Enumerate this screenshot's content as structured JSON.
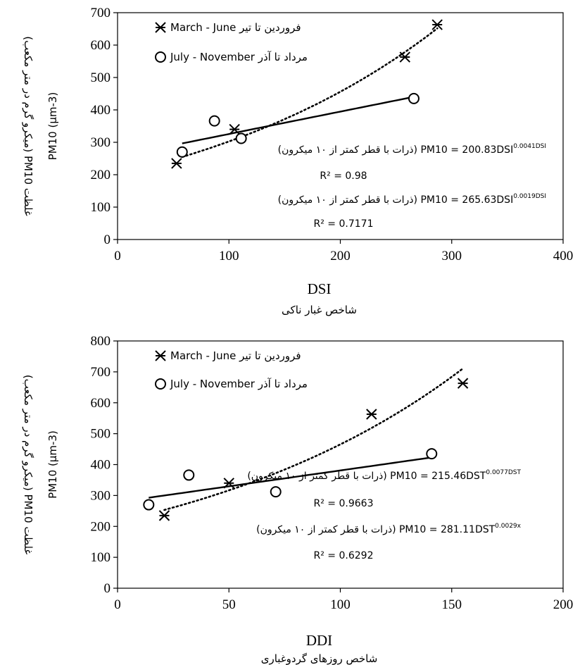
{
  "chart_data": [
    {
      "type": "scatter",
      "xlabel": "DSI",
      "xlabel_sub": "شاخص غبار ناکی",
      "ylabel_line1": "غلظت PM10 (میکرو گرم در متر مکعب)",
      "ylabel_line2": "PM10 (µm-3)",
      "xlim": [
        0,
        400
      ],
      "ylim": [
        0,
        700
      ],
      "xticks": [
        0,
        100,
        200,
        300,
        400
      ],
      "yticks": [
        0,
        100,
        200,
        300,
        400,
        500,
        600,
        700
      ],
      "grid": false,
      "legend_position": "top-left",
      "series": [
        {
          "name": "فروردین تا تیر March - June",
          "marker": "star",
          "trend": "exponential dotted",
          "x": [
            53,
            105,
            258,
            287
          ],
          "y": [
            235,
            340,
            563,
            663
          ],
          "trend_coeff": [
            200.83,
            0.0041
          ],
          "trend_x_range": [
            58,
            287
          ]
        },
        {
          "name": "مرداد تا آذر July - November",
          "marker": "circle",
          "trend": "exponential solid",
          "x": [
            58,
            87,
            111,
            266
          ],
          "y": [
            270,
            366,
            312,
            435
          ],
          "trend_coeff": [
            265.63,
            0.0019
          ],
          "trend_x_range": [
            58,
            266
          ]
        }
      ],
      "annotations": [
        {
          "text": "(ذرات با قطر کمتر از ۱۰ میکرون) PM10 = 200.83DSI",
          "sup": "0.0041DSI"
        },
        {
          "text": "R² = 0.98"
        },
        {
          "text": "(ذرات با قطر کمتر از ۱۰ میکرون) PM10 = 265.63DSI",
          "sup": "0.0019DSI"
        },
        {
          "text": "R² = 0.7171"
        }
      ]
    },
    {
      "type": "scatter",
      "xlabel": "DDI",
      "xlabel_sub": "شاخص روزهای گردوغباری",
      "ylabel_line1": "غلظت PM10 (میکرو گرم در متر مکعب)",
      "ylabel_line2": "PM10 (µm-3)",
      "xlim": [
        0,
        200
      ],
      "ylim": [
        0,
        800
      ],
      "xticks": [
        0,
        50,
        100,
        150,
        200
      ],
      "yticks": [
        0,
        100,
        200,
        300,
        400,
        500,
        600,
        700,
        800
      ],
      "grid": false,
      "legend_position": "top-left",
      "series": [
        {
          "name": "فروردین تا تیر March - June",
          "marker": "star",
          "trend": "exponential dotted",
          "x": [
            21,
            50,
            114,
            155
          ],
          "y": [
            235,
            340,
            563,
            663
          ],
          "trend_coeff": [
            215.46,
            0.0077
          ],
          "trend_x_range": [
            21,
            155
          ]
        },
        {
          "name": "مرداد تا آذر July - November",
          "marker": "circle",
          "trend": "exponential solid",
          "x": [
            14,
            32,
            71,
            141
          ],
          "y": [
            270,
            366,
            312,
            435
          ],
          "trend_coeff": [
            281.11,
            0.0029
          ],
          "trend_x_range": [
            14,
            141
          ]
        }
      ],
      "annotations": [
        {
          "text": "(ذرات با قطر کمتر از ۱۰ میکرون) PM10 = 215.46DST",
          "sup": "0.0077DST"
        },
        {
          "text": "R² = 0.9663"
        },
        {
          "text": "(ذرات با قطر کمتر از ۱۰ میکرون) PM10 = 281.11DST",
          "sup": "0.0029x"
        },
        {
          "text": "R² = 0.6292"
        }
      ]
    }
  ]
}
